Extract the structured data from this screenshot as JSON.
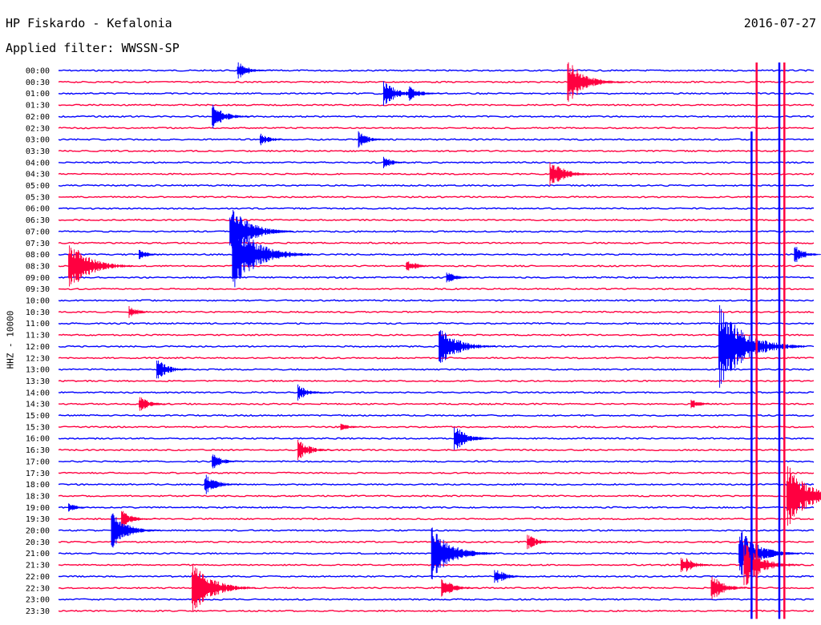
{
  "header": {
    "station": "HP Fiskardo - Kefalonia",
    "date": "2016-07-27",
    "filter": "Applied filter: WWSSN-SP",
    "channel": "HHZ - 10000"
  },
  "colors": {
    "odd": "#0000ff",
    "even": "#ff0040",
    "text": "#000000"
  },
  "chart_data": {
    "type": "line",
    "subtype": "helicorder",
    "title": "HP Fiskardo - Kefalonia",
    "date": "2016-07-27",
    "filter": "WWSSN-SP",
    "ylabel": "HHZ - 10000",
    "row_minutes": 30,
    "trace_colors": [
      "#0000ff",
      "#ff0040"
    ],
    "rows": [
      "00:00",
      "00:30",
      "01:00",
      "01:30",
      "02:00",
      "02:30",
      "03:00",
      "03:30",
      "04:00",
      "04:30",
      "05:00",
      "05:30",
      "06:00",
      "06:30",
      "07:00",
      "07:30",
      "08:00",
      "08:30",
      "09:00",
      "09:30",
      "10:00",
      "10:30",
      "11:00",
      "11:30",
      "12:00",
      "12:30",
      "13:00",
      "13:30",
      "14:00",
      "14:30",
      "15:00",
      "15:30",
      "16:00",
      "16:30",
      "17:00",
      "17:30",
      "18:00",
      "18:30",
      "19:00",
      "19:30",
      "20:00",
      "20:30",
      "21:00",
      "21:30",
      "22:00",
      "22:30",
      "23:00",
      "23:30"
    ],
    "events": [
      {
        "row": 0,
        "min": 7.1,
        "amp": 1.0
      },
      {
        "row": 1,
        "min": 20.2,
        "amp": 2.5
      },
      {
        "row": 2,
        "min": 12.9,
        "amp": 1.5
      },
      {
        "row": 2,
        "min": 13.9,
        "amp": 1.0
      },
      {
        "row": 4,
        "min": 6.1,
        "amp": 1.4
      },
      {
        "row": 6,
        "min": 8.0,
        "amp": 0.8
      },
      {
        "row": 6,
        "min": 11.9,
        "amp": 0.9
      },
      {
        "row": 8,
        "min": 12.9,
        "amp": 0.7
      },
      {
        "row": 9,
        "min": 19.5,
        "amp": 1.7
      },
      {
        "row": 14,
        "min": 6.8,
        "amp": 3.0
      },
      {
        "row": 16,
        "min": 6.9,
        "amp": 4.0
      },
      {
        "row": 16,
        "min": 3.2,
        "amp": 0.6
      },
      {
        "row": 16,
        "min": 29.2,
        "amp": 1.0
      },
      {
        "row": 17,
        "min": 0.4,
        "amp": 3.0
      },
      {
        "row": 17,
        "min": 13.8,
        "amp": 0.8
      },
      {
        "row": 18,
        "min": 15.4,
        "amp": 0.7
      },
      {
        "row": 21,
        "min": 2.8,
        "amp": 0.7
      },
      {
        "row": 24,
        "min": 15.1,
        "amp": 2.5
      },
      {
        "row": 24,
        "min": 26.2,
        "amp": 4.5
      },
      {
        "row": 26,
        "min": 3.9,
        "amp": 1.2
      },
      {
        "row": 28,
        "min": 9.5,
        "amp": 0.9
      },
      {
        "row": 29,
        "min": 3.2,
        "amp": 0.9
      },
      {
        "row": 29,
        "min": 25.1,
        "amp": 0.6
      },
      {
        "row": 31,
        "min": 11.2,
        "amp": 0.5
      },
      {
        "row": 32,
        "min": 15.7,
        "amp": 1.5
      },
      {
        "row": 33,
        "min": 9.5,
        "amp": 1.2
      },
      {
        "row": 34,
        "min": 6.1,
        "amp": 0.9
      },
      {
        "row": 36,
        "min": 5.8,
        "amp": 1.2
      },
      {
        "row": 37,
        "min": 28.9,
        "amp": 3.5
      },
      {
        "row": 38,
        "min": 0.4,
        "amp": 0.5
      },
      {
        "row": 39,
        "min": 2.5,
        "amp": 1.0
      },
      {
        "row": 40,
        "min": 2.1,
        "amp": 2.0
      },
      {
        "row": 41,
        "min": 18.6,
        "amp": 0.9
      },
      {
        "row": 42,
        "min": 14.8,
        "amp": 3.0
      },
      {
        "row": 42,
        "min": 27.0,
        "amp": 2.8
      },
      {
        "row": 43,
        "min": 24.7,
        "amp": 1.2
      },
      {
        "row": 43,
        "min": 27.2,
        "amp": 2.5
      },
      {
        "row": 44,
        "min": 17.3,
        "amp": 1.0
      },
      {
        "row": 45,
        "min": 5.3,
        "amp": 3.0
      },
      {
        "row": 45,
        "min": 15.2,
        "amp": 1.2
      },
      {
        "row": 45,
        "min": 25.9,
        "amp": 1.5
      }
    ],
    "long_events": [
      {
        "min": 27.5,
        "row_start": 6,
        "row_end": 47
      },
      {
        "min": 27.7,
        "row_start": 0,
        "row_end": 47
      },
      {
        "min": 28.6,
        "row_start": 0,
        "row_end": 47
      },
      {
        "min": 28.8,
        "row_start": 0,
        "row_end": 47
      }
    ],
    "grid": false
  }
}
